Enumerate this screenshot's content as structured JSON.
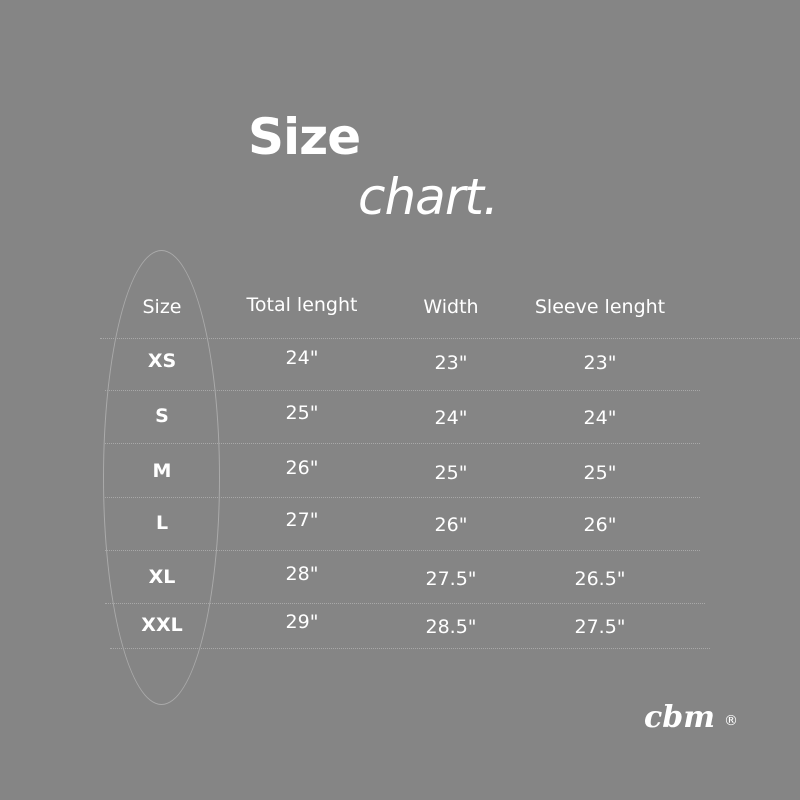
{
  "title": {
    "line1": "Size",
    "line2": "chart."
  },
  "table": {
    "headers": [
      "Size",
      "Total lenght",
      "Width",
      "Sleeve lenght"
    ],
    "rows": [
      [
        "XS",
        "24\"",
        "23\"",
        "23\""
      ],
      [
        "S",
        "25\"",
        "24\"",
        "24\""
      ],
      [
        "M",
        "26\"",
        "25\"",
        "25\""
      ],
      [
        "L",
        "27\"",
        "26\"",
        "26\""
      ],
      [
        "XL",
        "28\"",
        "27.5\"",
        "26.5\""
      ],
      [
        "XXL",
        "29\"",
        "28.5\"",
        "27.5\""
      ]
    ]
  },
  "brand": {
    "logo": "cbm",
    "mark": "®"
  },
  "colors": {
    "background": "#858585",
    "text": "#ffffff"
  }
}
